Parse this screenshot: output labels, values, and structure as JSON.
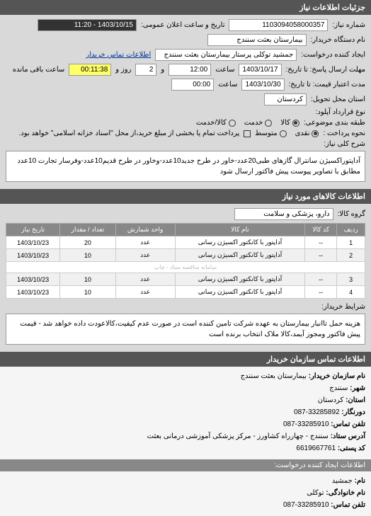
{
  "section1_title": "جزئیات اطلاعات نیاز",
  "need_number_label": "شماره نیاز:",
  "need_number": "1103094058000357",
  "announce_label": "تاریخ و ساعت اعلان عمومی:",
  "announce_value": "1403/10/15 - 11:20",
  "buyer_name_label": "نام دستگاه خریدار:",
  "buyer_name": "بیمارستان بعثت سنندج",
  "requester_label": "ایجاد کننده درخواست:",
  "requester": "جمشید توکلی پرستار بیمارستان بعثت سنندج",
  "contact_link": "اطلاعات تماس خریدار",
  "deadline_label": "مهلت ارسال پاسخ: تا تاریخ:",
  "deadline_date": "1403/10/17",
  "deadline_time_label": "ساعت",
  "deadline_time": "12:00",
  "remain_label": "و",
  "remain_days": "2",
  "remain_label2": "روز و",
  "remain_time": "00:11:38",
  "remain_label3": "ساعت باقی مانده",
  "validity_label": "مدت اعتبار قیمت: تا تاریخ:",
  "validity_date": "1403/10/30",
  "validity_time": "00:00",
  "delivery_state_label": "استان محل تحویل:",
  "delivery_state": "کردستان",
  "agreement_label": "نوع قرارداد آپلود:",
  "packing_label": "طبقه بندی موضوعی:",
  "packing_options": [
    "کالا",
    "خدمت",
    "کالا/خدمت"
  ],
  "packing_selected": 0,
  "payment_label": "نحوه پرداخت :",
  "payment_options": [
    "نقدی",
    "متوسط"
  ],
  "payment_selected": 0,
  "payment_note_checkbox": "پرداخت تمام یا بخشی از مبلغ خرید،از محل \"اسناد خزانه اسلامی\" خواهد بود.",
  "general_desc_label": "شرح کلی نیاز:",
  "general_desc": "آداپتوراکسیژن سانترال گازهای طبی20عدد-خاور در طرح جدید10عدد-وخاور در طرح قدیم10عدد-وفرسار تجارت 10عدد مطابق با تصاویر پیوست پیش فاکتور ارسال شود",
  "section2_title": "اطلاعات کالاهای مورد نیاز",
  "goods_group_label": "گروه کالا:",
  "goods_group": "دارو، پزشکی و سلامت",
  "table": {
    "columns": [
      "ردیف",
      "کد کالا",
      "نام کالا",
      "واحد شمارش",
      "تعداد / مقدار",
      "تاریخ نیاز"
    ],
    "rows": [
      [
        "1",
        "--",
        "آداپتور با کانکتور اکسیژن رسانی",
        "عدد",
        "20",
        "1403/10/23"
      ],
      [
        "2",
        "--",
        "آداپتور با کانکتور اکسیژن رسانی",
        "عدد",
        "10",
        "1403/10/23"
      ],
      [
        "3",
        "--",
        "آداپتور با کانکتور اکسیژن رسانی",
        "عدد",
        "10",
        "1403/10/23"
      ],
      [
        "4",
        "--",
        "آداپتور با کانکتور اکسیژن رسانی",
        "عدد",
        "10",
        "1403/10/23"
      ]
    ],
    "watermark": "سامانه مناقصه ستاد - چاپ"
  },
  "buyer_conditions_label": "شرایط خریدار:",
  "buyer_conditions": "هزینه حمل تاانبار بیمارستان به عهده شرکت تامین کننده است در صورت عدم کیفیت،کالاعودت داده خواهد شد - قیمت پیش فاکتور ومجوز آیمد،کالا ملاک انتخاب برنده است",
  "section3_title": "اطلاعات تماس سازمان خریدار",
  "contact": {
    "org_label": "نام سازمان خریدار:",
    "org": "بیمارستان بعثت سنندج",
    "city_label": "شهر:",
    "city": "سنندج",
    "province_label": "استان:",
    "province": "کردستان",
    "fax_label": "دورنگار:",
    "fax": "33285892-087",
    "phone_label": "تلفن تماس:",
    "phone": "33285910-087",
    "address_label": "آدرس ستاد:",
    "address": "سنندج - چهارراه کشاورز - مرکز پزشکی آموزشی درمانی بعثت",
    "postal_label": "کد پستی:",
    "postal": "6619667761",
    "creator_header": "اطلاعات ایجاد کننده درخواست:",
    "name_label": "نام:",
    "name": "جمشید",
    "lastname_label": "نام خانوادگی:",
    "lastname": "توکلی",
    "phone2_label": "تلفن تماس:",
    "phone2": "33285910-087"
  }
}
